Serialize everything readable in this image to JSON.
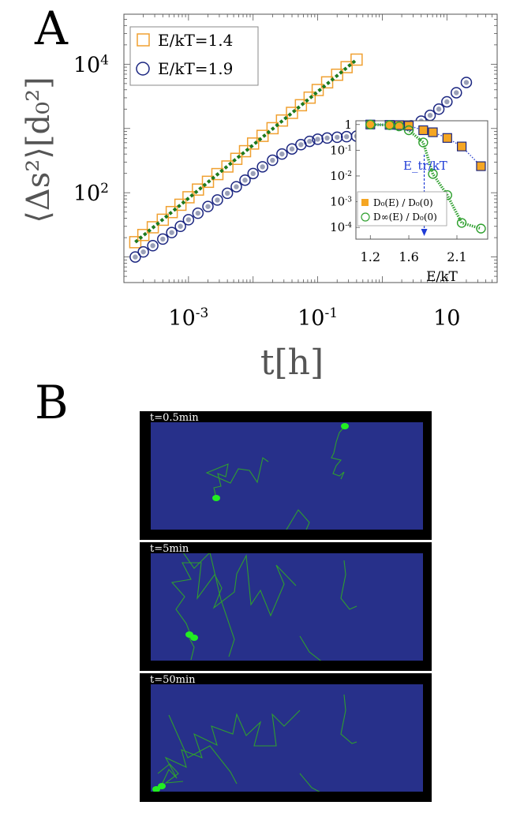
{
  "panel_a": {
    "letter": "A",
    "ylabel": "⟨Δs²⟩[d₀²]",
    "xlabel": "t[h]"
  },
  "panel_b": {
    "letter": "B",
    "frames": [
      {
        "label": "t=0.5min"
      },
      {
        "label": "t=5min"
      },
      {
        "label": "t=50min"
      }
    ],
    "colors": {
      "border": "#000000",
      "field": "#27308a",
      "path": "#2f9e2f",
      "cell": "#22ee22"
    }
  },
  "chart_data": [
    {
      "type": "scatter",
      "xscale": "log",
      "yscale": "log",
      "xlim": [
        0.0001,
        60
      ],
      "ylim": [
        4,
        60000
      ],
      "xlabel": "t[h]",
      "ylabel": "⟨Δs²⟩[d₀²]",
      "xticks": [
        0.001,
        0.1,
        10
      ],
      "xtick_labels": [
        "10^-3",
        "10^-1",
        "10"
      ],
      "yticks": [
        100,
        10000
      ],
      "ytick_labels": [
        "10^2",
        "10^4"
      ],
      "legend_position": "top-left",
      "series": [
        {
          "name": "E/kT=1.4",
          "marker": "square",
          "color": "#f0a030",
          "x": [
            0.00015,
            0.0002,
            0.00028,
            0.0004,
            0.00055,
            0.00075,
            0.001,
            0.0014,
            0.002,
            0.0028,
            0.004,
            0.0055,
            0.0075,
            0.01,
            0.014,
            0.02,
            0.028,
            0.04,
            0.055,
            0.075,
            0.1,
            0.14,
            0.2,
            0.28,
            0.4
          ],
          "y": [
            17,
            22,
            29,
            38,
            50,
            65,
            85,
            112,
            148,
            195,
            256,
            337,
            443,
            583,
            767,
            1010,
            1330,
            1750,
            2300,
            3020,
            3970,
            5220,
            6860,
            9000,
            11800
          ]
        },
        {
          "name": "E/kT=1.9",
          "marker": "circle",
          "color": "#1a2580",
          "x": [
            0.00015,
            0.0002,
            0.00028,
            0.0004,
            0.00055,
            0.00075,
            0.001,
            0.0014,
            0.002,
            0.0028,
            0.004,
            0.0055,
            0.0075,
            0.01,
            0.014,
            0.02,
            0.028,
            0.04,
            0.055,
            0.075,
            0.1,
            0.14,
            0.2,
            0.28,
            0.4,
            0.55,
            0.75,
            1,
            1.4,
            2,
            2.8,
            4,
            5.5,
            7.5,
            10,
            14,
            20
          ],
          "y": [
            10,
            12,
            15,
            19,
            24,
            30,
            38,
            48,
            61,
            77,
            98,
            124,
            157,
            199,
            253,
            320,
            400,
            480,
            560,
            630,
            680,
            710,
            730,
            745,
            760,
            780,
            810,
            850,
            900,
            980,
            1100,
            1300,
            1600,
            2000,
            2600,
            3600,
            5200
          ]
        }
      ],
      "guide_line": {
        "color": "#1e7a1e",
        "style": "dotted",
        "x": [
          0.00015,
          0.4
        ],
        "y": [
          17,
          11800
        ]
      }
    },
    {
      "type": "scatter",
      "inset": true,
      "yscale": "log",
      "xlim": [
        1.05,
        2.42
      ],
      "ylim": [
        3.5e-05,
        1.4
      ],
      "xlabel": "E/kT",
      "xticks": [
        1.2,
        1.6,
        2.1
      ],
      "xtick_labels": [
        "1.2",
        "1.6",
        "2.1"
      ],
      "yticks": [
        1,
        0.1,
        0.01,
        0.001,
        0.0001
      ],
      "ytick_labels": [
        "1",
        "10^-1",
        "10^-2",
        "10^-3",
        "10^-4"
      ],
      "legend_position": "bottom-left",
      "annotation": {
        "text": "E_tr/kT",
        "x": 1.76
      },
      "series": [
        {
          "name": "D₀(E) / D₀(0)",
          "marker": "filled-square",
          "color": "#f5a623",
          "x": [
            1.2,
            1.4,
            1.5,
            1.6,
            1.75,
            1.85,
            2.0,
            2.15,
            2.35
          ],
          "y": [
            1.0,
            0.97,
            0.95,
            0.9,
            0.6,
            0.5,
            0.3,
            0.14,
            0.024
          ]
        },
        {
          "name": "D∞(E) / D₀(0)",
          "marker": "circle",
          "color": "#2fa02f",
          "x": [
            1.2,
            1.4,
            1.5,
            1.6,
            1.75,
            1.85,
            2.0,
            2.15,
            2.35
          ],
          "y": [
            1.0,
            0.95,
            0.85,
            0.6,
            0.2,
            0.012,
            0.0018,
            0.00015,
            9e-05
          ]
        }
      ]
    }
  ]
}
